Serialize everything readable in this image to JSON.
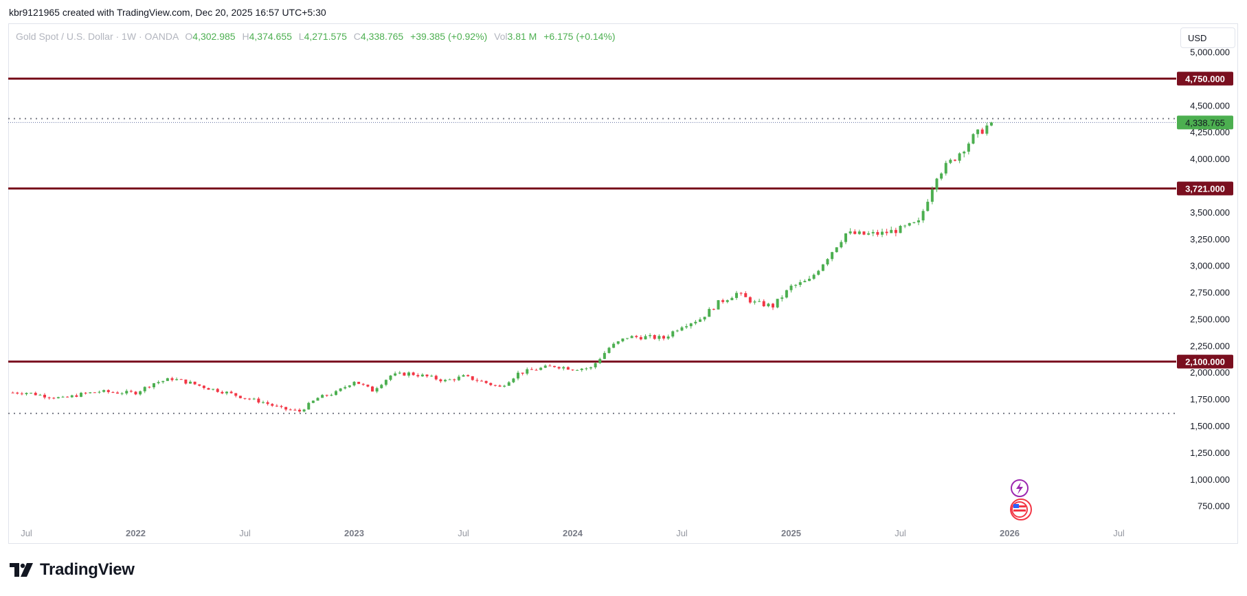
{
  "credit": "kbr9121965 created with TradingView.com, Dec 20, 2025 16:57 UTC+5:30",
  "legend": {
    "symbol": "Gold Spot / U.S. Dollar · 1W · OANDA",
    "open_label": "O",
    "open": "4,302.985",
    "high_label": "H",
    "high": "4,374.655",
    "low_label": "L",
    "low": "4,271.575",
    "close_label": "C",
    "close": "4,338.765",
    "change": "+39.385 (+0.92%)",
    "vol_label": "Vol",
    "vol": "3.81 M",
    "vol_change": "+6.175 (+0.14%)"
  },
  "currency_button": "USD",
  "brand": "TradingView",
  "icons": [
    "tradingview-logo-icon",
    "lightning-event-icon",
    "us-flag-event-icon"
  ],
  "colors": {
    "up": "#4caf50",
    "down": "#f23645",
    "level": "#7a0f1f",
    "price": "#4caf50"
  },
  "chart_data": {
    "type": "candlestick",
    "title": "Gold Spot / U.S. Dollar · 1W · OANDA",
    "y_scale": "linear",
    "ylim": [
      600,
      5100
    ],
    "y_ticks": [
      "5,000.000",
      "4,500.000",
      "4,250.000",
      "4,000.000",
      "3,500.000",
      "3,250.000",
      "3,000.000",
      "2,750.000",
      "2,500.000",
      "2,250.000",
      "2,000.000",
      "1,750.000",
      "1,500.000",
      "1,250.000",
      "1,000.000",
      "750.000"
    ],
    "x_ticks": [
      "Jul",
      "2022",
      "Jul",
      "2023",
      "Jul",
      "2024",
      "Jul",
      "2025",
      "Jul",
      "2026",
      "Jul"
    ],
    "x_range": [
      "2021-06",
      "2026-10"
    ],
    "horizontal_levels": [
      {
        "value": 4750,
        "label": "4,750.000",
        "style": "solid"
      },
      {
        "value": 3721,
        "label": "3,721.000",
        "style": "solid"
      },
      {
        "value": 2100,
        "label": "2,100.000",
        "style": "solid"
      },
      {
        "value": 1615,
        "label": "",
        "style": "dotted"
      },
      {
        "value": 4375,
        "label": "",
        "style": "dotted"
      }
    ],
    "last_price": {
      "value": 4338.765,
      "label": "4,338.765"
    },
    "series": [
      {
        "x": "2021-07",
        "close": 1810
      },
      {
        "x": "2021-08",
        "close": 1780
      },
      {
        "x": "2021-09",
        "close": 1755
      },
      {
        "x": "2021-10",
        "close": 1795
      },
      {
        "x": "2021-11",
        "close": 1820
      },
      {
        "x": "2021-12",
        "close": 1810
      },
      {
        "x": "2022-01",
        "close": 1810
      },
      {
        "x": "2022-02",
        "close": 1900
      },
      {
        "x": "2022-03",
        "close": 1940
      },
      {
        "x": "2022-04",
        "close": 1900
      },
      {
        "x": "2022-05",
        "close": 1850
      },
      {
        "x": "2022-06",
        "close": 1810
      },
      {
        "x": "2022-07",
        "close": 1760
      },
      {
        "x": "2022-08",
        "close": 1720
      },
      {
        "x": "2022-09",
        "close": 1660
      },
      {
        "x": "2022-10",
        "close": 1635
      },
      {
        "x": "2022-11",
        "close": 1760
      },
      {
        "x": "2022-12",
        "close": 1810
      },
      {
        "x": "2023-01",
        "close": 1920
      },
      {
        "x": "2023-02",
        "close": 1830
      },
      {
        "x": "2023-03",
        "close": 1970
      },
      {
        "x": "2023-04",
        "close": 1990
      },
      {
        "x": "2023-05",
        "close": 1960
      },
      {
        "x": "2023-06",
        "close": 1920
      },
      {
        "x": "2023-07",
        "close": 1960
      },
      {
        "x": "2023-08",
        "close": 1915
      },
      {
        "x": "2023-09",
        "close": 1860
      },
      {
        "x": "2023-10",
        "close": 1990
      },
      {
        "x": "2023-11",
        "close": 2030
      },
      {
        "x": "2023-12",
        "close": 2060
      },
      {
        "x": "2024-01",
        "close": 2035
      },
      {
        "x": "2024-02",
        "close": 2040
      },
      {
        "x": "2024-03",
        "close": 2230
      },
      {
        "x": "2024-04",
        "close": 2330
      },
      {
        "x": "2024-05",
        "close": 2330
      },
      {
        "x": "2024-06",
        "close": 2320
      },
      {
        "x": "2024-07",
        "close": 2440
      },
      {
        "x": "2024-08",
        "close": 2500
      },
      {
        "x": "2024-09",
        "close": 2650
      },
      {
        "x": "2024-10",
        "close": 2740
      },
      {
        "x": "2024-11",
        "close": 2650
      },
      {
        "x": "2024-12",
        "close": 2620
      },
      {
        "x": "2025-01",
        "close": 2800
      },
      {
        "x": "2025-02",
        "close": 2860
      },
      {
        "x": "2025-03",
        "close": 3080
      },
      {
        "x": "2025-04",
        "close": 3300
      },
      {
        "x": "2025-05",
        "close": 3290
      },
      {
        "x": "2025-06",
        "close": 3300
      },
      {
        "x": "2025-07",
        "close": 3340
      },
      {
        "x": "2025-08",
        "close": 3400
      },
      {
        "x": "2025-09",
        "close": 3850
      },
      {
        "x": "2025-10",
        "close": 4010
      },
      {
        "x": "2025-11",
        "close": 4200
      },
      {
        "x": "2025-12",
        "close": 4338.765
      }
    ]
  }
}
